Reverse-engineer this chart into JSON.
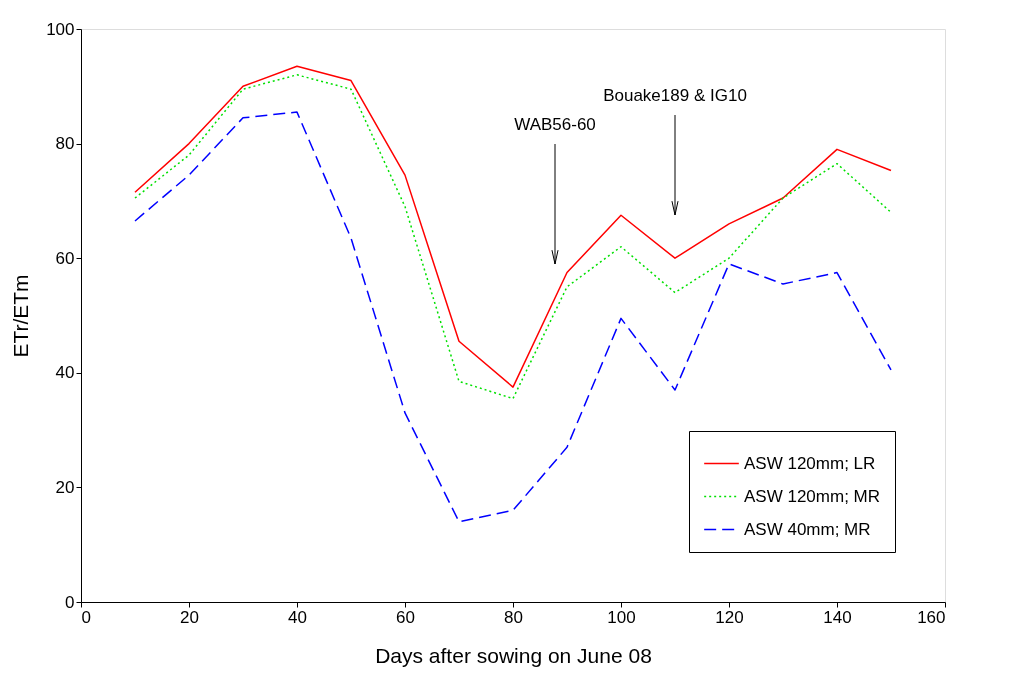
{
  "chart_data": {
    "type": "line",
    "xlabel": "Days after sowing on June 08",
    "ylabel": "ETr/ETm",
    "x": [
      10,
      20,
      30,
      40,
      50,
      60,
      70,
      80,
      90,
      100,
      110,
      120,
      130,
      140,
      150
    ],
    "series": [
      {
        "name": "ASW 120mm; LR",
        "color": "#ff0000",
        "line_style": "solid",
        "values": [
          71.5,
          80,
          90,
          93.5,
          91,
          74.5,
          45.5,
          37.5,
          57.5,
          67.5,
          60,
          66,
          70.5,
          79,
          75.3
        ]
      },
      {
        "name": "ASW 120mm; MR",
        "color": "#00e000",
        "line_style": "dotted",
        "values": [
          70.5,
          78,
          89.5,
          92,
          89.5,
          69,
          38.5,
          35.5,
          55,
          62,
          54,
          60,
          70.5,
          76.5,
          68
        ]
      },
      {
        "name": "ASW 40mm; MR",
        "color": "#0000ff",
        "line_style": "dashed",
        "values": [
          66.5,
          74.5,
          84.5,
          85.5,
          63.5,
          33,
          14,
          16,
          27,
          49.5,
          37,
          59,
          55.5,
          57.5,
          40.5
        ]
      }
    ],
    "annotations": [
      "WAB56-60",
      "Bouake189 & IG10"
    ],
    "xlim": [
      0,
      160
    ],
    "xticks": [
      0,
      20,
      40,
      60,
      80,
      100,
      120,
      140,
      160
    ],
    "ylim": [
      0,
      100
    ],
    "yticks": [
      0,
      20,
      40,
      60,
      80,
      100
    ],
    "grid": false,
    "legend": "bottom right",
    "marker": "none"
  }
}
